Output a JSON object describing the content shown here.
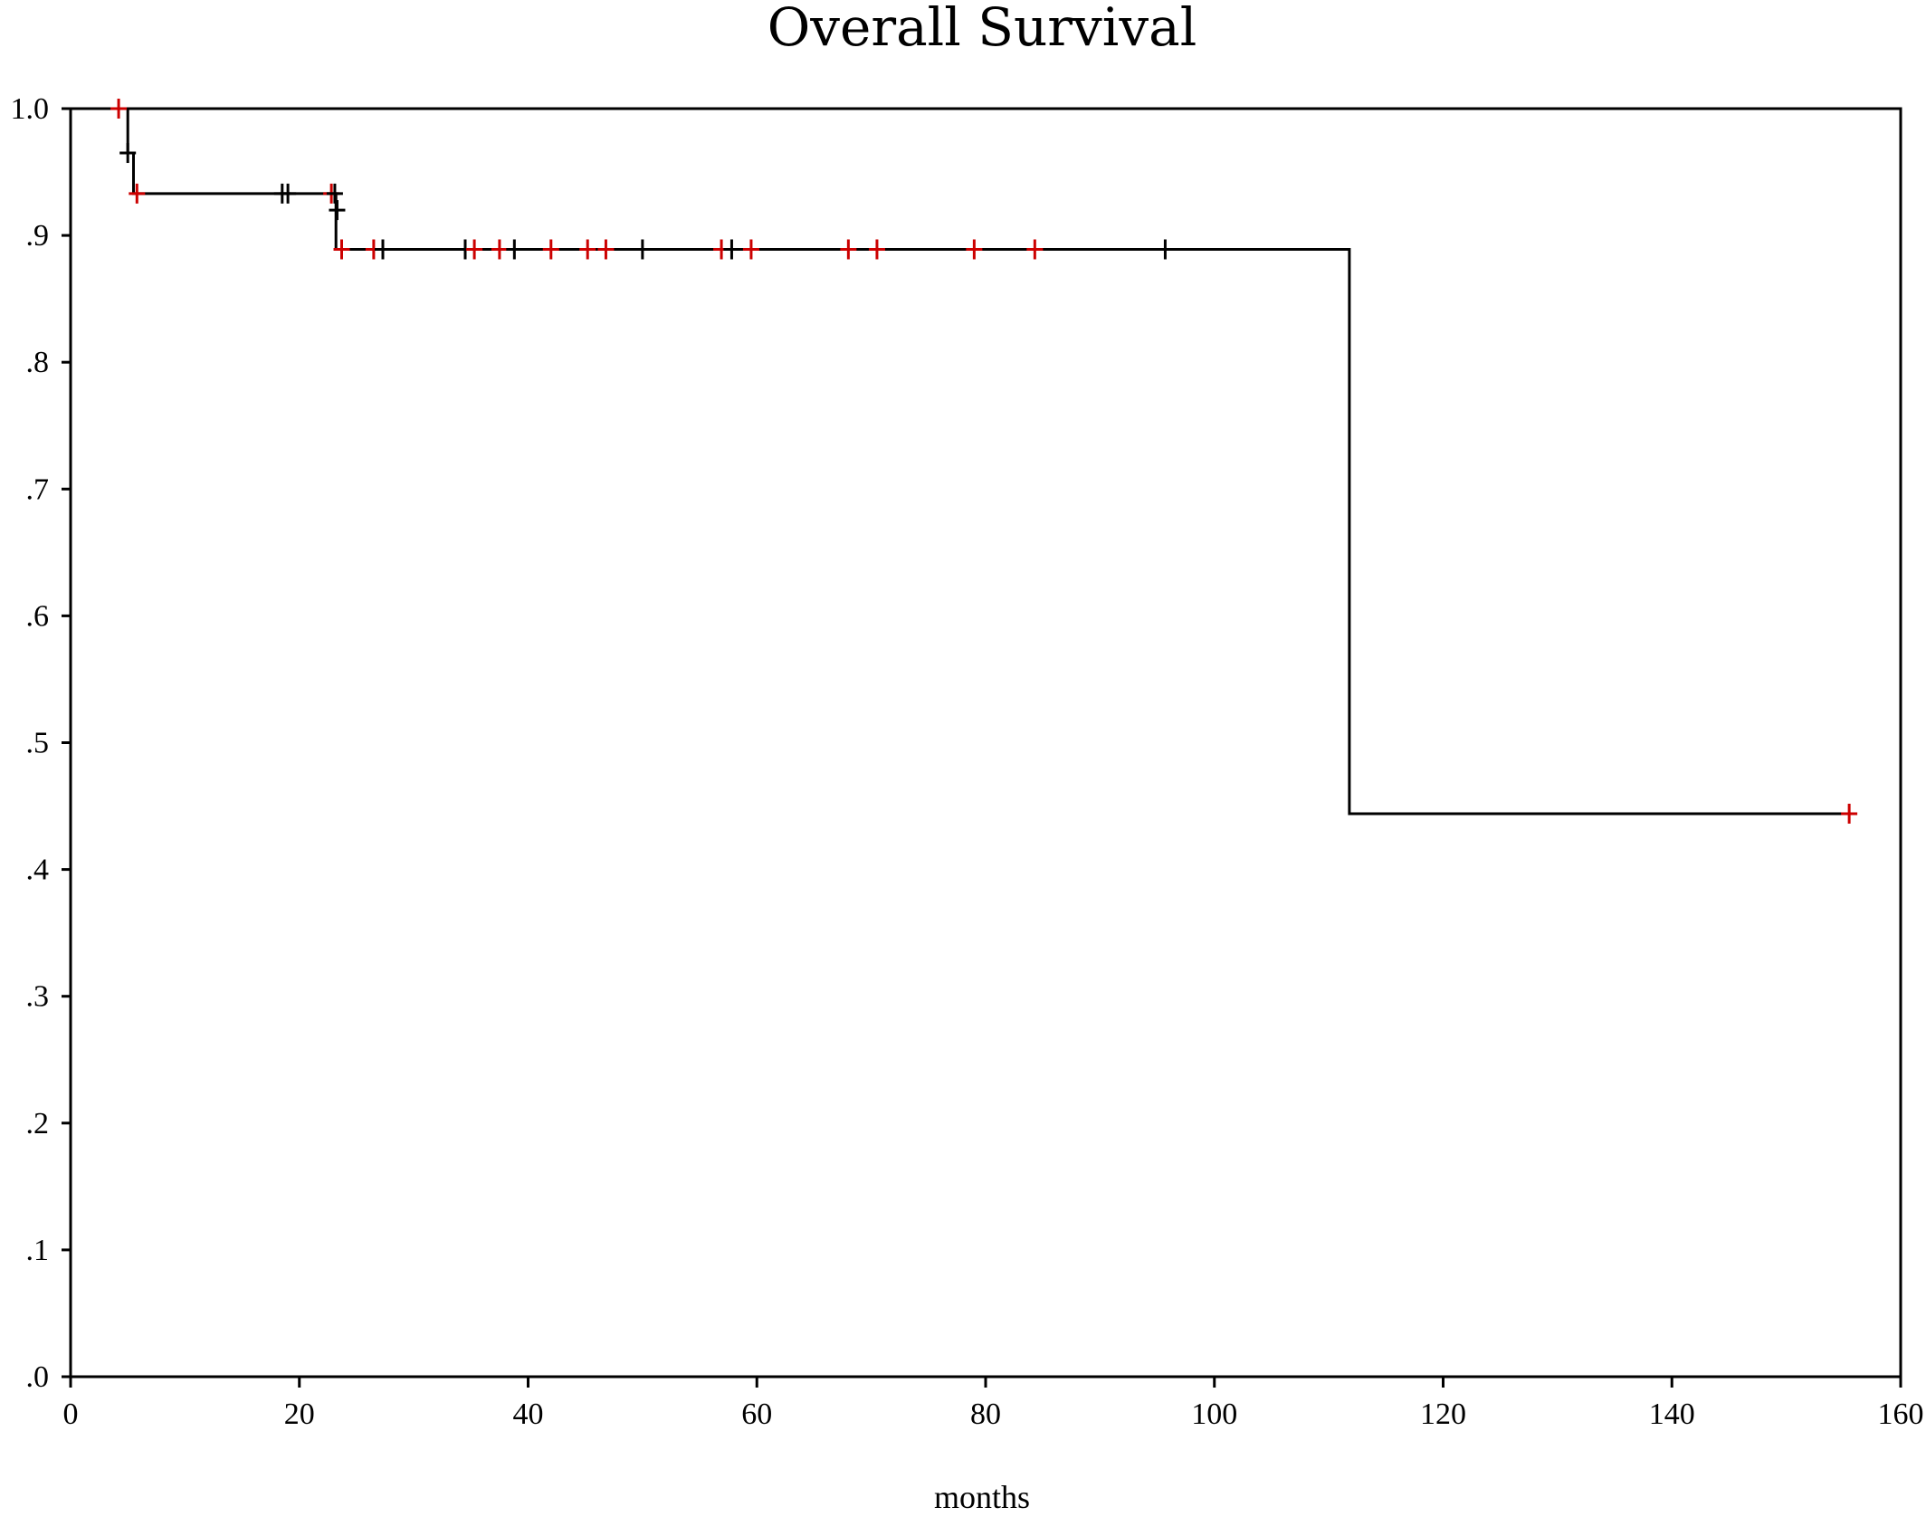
{
  "chart_data": {
    "type": "line",
    "title": "Overall Survival",
    "xlabel": "months",
    "ylabel": "",
    "xlim": [
      0,
      160
    ],
    "ylim": [
      0,
      1
    ],
    "x_ticks": [
      0,
      20,
      40,
      60,
      80,
      100,
      120,
      140,
      160
    ],
    "x_tick_labels": [
      "0",
      "20",
      "40",
      "60",
      "80",
      "100",
      "120",
      "140",
      "160"
    ],
    "y_ticks": [
      0,
      0.1,
      0.2,
      0.3,
      0.4,
      0.5,
      0.6,
      0.7,
      0.8,
      0.9,
      1.0
    ],
    "y_tick_labels": [
      ".0",
      ".1",
      ".2",
      ".3",
      ".4",
      ".5",
      ".6",
      ".7",
      ".8",
      ".9",
      "1.0"
    ],
    "grid": false,
    "series": [
      {
        "step": true,
        "x": [
          0,
          5,
          5,
          5.5,
          5.5,
          23.2,
          23.2,
          111.8,
          111.8,
          155.5
        ],
        "y": [
          1.0,
          1.0,
          0.965,
          0.965,
          0.933,
          0.933,
          0.889,
          0.889,
          0.444,
          0.444
        ]
      }
    ],
    "censored": [
      {
        "x": 4.2,
        "y": 1.0,
        "color": "#cc0000"
      },
      {
        "x": 5.0,
        "y": 0.965,
        "color": "#000000"
      },
      {
        "x": 5.8,
        "y": 0.933,
        "color": "#cc0000"
      },
      {
        "x": 18.5,
        "y": 0.933,
        "color": "#000000"
      },
      {
        "x": 19.0,
        "y": 0.933,
        "color": "#000000"
      },
      {
        "x": 22.8,
        "y": 0.933,
        "color": "#cc0000"
      },
      {
        "x": 23.1,
        "y": 0.933,
        "color": "#000000"
      },
      {
        "x": 23.3,
        "y": 0.92,
        "color": "#000000"
      },
      {
        "x": 23.7,
        "y": 0.889,
        "color": "#cc0000"
      },
      {
        "x": 26.5,
        "y": 0.889,
        "color": "#cc0000"
      },
      {
        "x": 27.3,
        "y": 0.889,
        "color": "#000000"
      },
      {
        "x": 34.5,
        "y": 0.889,
        "color": "#000000"
      },
      {
        "x": 35.3,
        "y": 0.889,
        "color": "#cc0000"
      },
      {
        "x": 37.5,
        "y": 0.889,
        "color": "#cc0000"
      },
      {
        "x": 38.8,
        "y": 0.889,
        "color": "#000000"
      },
      {
        "x": 42.0,
        "y": 0.889,
        "color": "#cc0000"
      },
      {
        "x": 45.2,
        "y": 0.889,
        "color": "#cc0000"
      },
      {
        "x": 46.8,
        "y": 0.889,
        "color": "#cc0000"
      },
      {
        "x": 50.0,
        "y": 0.889,
        "color": "#000000"
      },
      {
        "x": 56.9,
        "y": 0.889,
        "color": "#cc0000"
      },
      {
        "x": 57.8,
        "y": 0.889,
        "color": "#000000"
      },
      {
        "x": 59.5,
        "y": 0.889,
        "color": "#cc0000"
      },
      {
        "x": 68.0,
        "y": 0.889,
        "color": "#cc0000"
      },
      {
        "x": 70.5,
        "y": 0.889,
        "color": "#cc0000"
      },
      {
        "x": 79.0,
        "y": 0.889,
        "color": "#cc0000"
      },
      {
        "x": 84.3,
        "y": 0.889,
        "color": "#cc0000"
      },
      {
        "x": 95.7,
        "y": 0.889,
        "color": "#000000"
      },
      {
        "x": 155.5,
        "y": 0.444,
        "color": "#cc0000"
      }
    ]
  }
}
